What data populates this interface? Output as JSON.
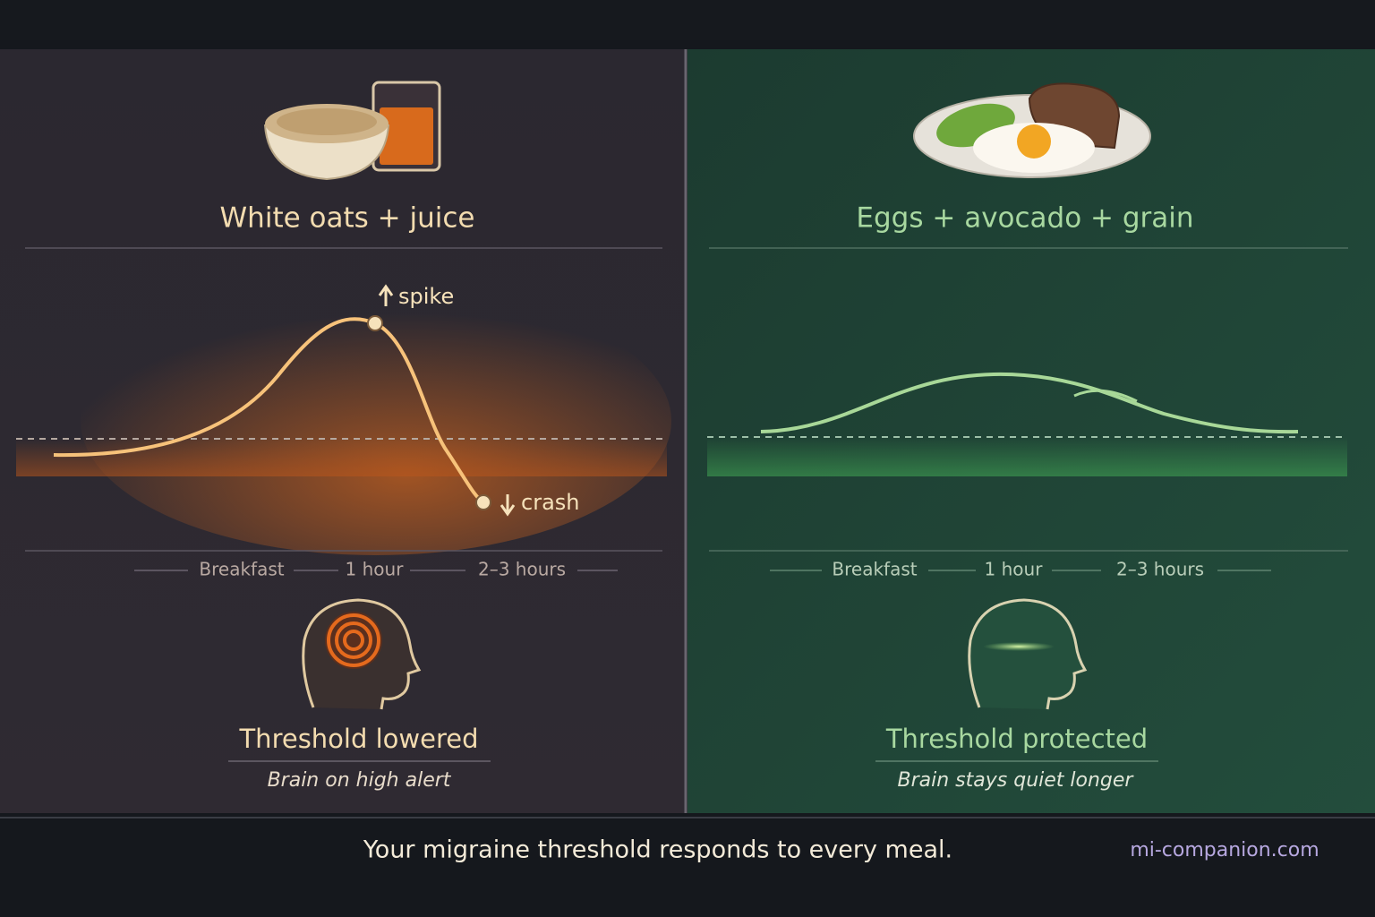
{
  "panels": [
    {
      "title": "White oats + juice",
      "peak_label": "spike",
      "trough_label": "crash",
      "timeline": [
        "Breakfast",
        "1 hour",
        "2–3 hours"
      ],
      "status": "Threshold lowered",
      "caption": "Brain on high alert"
    },
    {
      "title": "Eggs + avocado + grain",
      "timeline": [
        "Breakfast",
        "1 hour",
        "2–3 hours"
      ],
      "status": "Threshold protected",
      "caption": "Brain stays quiet longer"
    }
  ],
  "footer": {
    "tagline": "Your migraine threshold responds to every meal.",
    "site": "mi-companion.com"
  }
}
